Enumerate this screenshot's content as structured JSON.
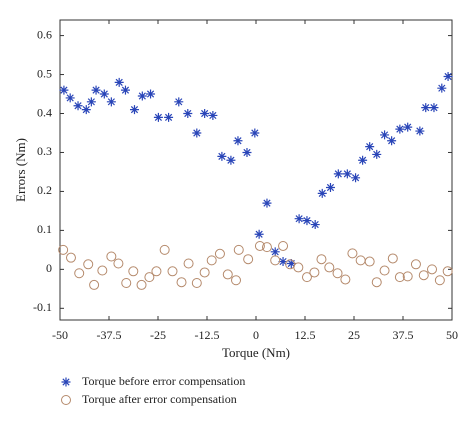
{
  "chart_data": {
    "type": "scatter",
    "x_label": "Torque (Nm)",
    "y_label": "Errors (Nm)",
    "xlim": [
      -50,
      50
    ],
    "xticks": [
      -50,
      -37.5,
      -25,
      -12.5,
      0,
      12.5,
      25,
      37.5,
      50
    ],
    "ylim": [
      -0.13,
      0.64
    ],
    "yticks": [
      -0.1,
      0,
      0.1,
      0.2,
      0.3,
      0.4,
      0.5,
      0.6
    ],
    "series": [
      {
        "name": "Torque before error compensation",
        "color": "#2945b8",
        "marker": "star",
        "x": [
          -49,
          -47.4,
          -45.4,
          -43.3,
          -42,
          -40.8,
          -38.7,
          -36.9,
          -34.9,
          -33.3,
          -31,
          -29,
          -26.9,
          -24.9,
          -22.3,
          -19.7,
          -17.4,
          -15.1,
          -13.1,
          -11,
          -8.7,
          -6.4,
          -4.6,
          -2.3,
          -0.3,
          0.8,
          2.8,
          4.9,
          6.9,
          9,
          11,
          13,
          15.1,
          16.9,
          19,
          21,
          23.3,
          25.4,
          27.2,
          29,
          30.8,
          32.8,
          34.6,
          36.7,
          38.7,
          41.8,
          43.3,
          45.4,
          47.4,
          49
        ],
        "values": [
          0.46,
          0.44,
          0.42,
          0.41,
          0.43,
          0.46,
          0.45,
          0.43,
          0.48,
          0.46,
          0.41,
          0.445,
          0.45,
          0.39,
          0.39,
          0.43,
          0.4,
          0.35,
          0.4,
          0.395,
          0.29,
          0.28,
          0.33,
          0.3,
          0.35,
          0.09,
          0.17,
          0.045,
          0.02,
          0.015,
          0.13,
          0.125,
          0.115,
          0.195,
          0.21,
          0.245,
          0.245,
          0.235,
          0.28,
          0.315,
          0.295,
          0.345,
          0.33,
          0.36,
          0.365,
          0.355,
          0.415,
          0.415,
          0.465,
          0.495
        ]
      },
      {
        "name": "Torque after error compensation",
        "color": "#b58a6c",
        "marker": "circle",
        "x": [
          -49.2,
          -47.2,
          -45.1,
          -42.8,
          -41.3,
          -39.2,
          -36.9,
          -35.1,
          -33.1,
          -31.3,
          -29.2,
          -27.2,
          -25.4,
          -23.3,
          -21.3,
          -19,
          -17.2,
          -15.1,
          -13.1,
          -11.3,
          -9.2,
          -7.2,
          -5.1,
          -4.4,
          -2,
          1,
          2.8,
          4.9,
          6.9,
          8.7,
          10.8,
          13,
          14.9,
          16.7,
          18.7,
          20.8,
          22.8,
          24.6,
          26.7,
          29,
          30.8,
          32.8,
          34.9,
          36.7,
          38.7,
          40.8,
          42.8,
          44.9,
          46.9,
          48.9
        ],
        "values": [
          0.05,
          0.03,
          -0.01,
          0.013,
          -0.04,
          -0.003,
          0.033,
          0.015,
          -0.035,
          -0.005,
          -0.04,
          -0.02,
          -0.005,
          0.05,
          -0.005,
          -0.033,
          0.015,
          -0.035,
          -0.008,
          0.023,
          0.04,
          -0.013,
          -0.028,
          0.05,
          0.026,
          0.06,
          0.057,
          0.023,
          0.06,
          0.013,
          0.005,
          -0.02,
          -0.008,
          0.026,
          0.005,
          -0.01,
          -0.026,
          0.041,
          0.023,
          0.02,
          -0.033,
          -0.003,
          0.028,
          -0.02,
          -0.018,
          0.013,
          -0.015,
          0,
          -0.028,
          -0.005
        ]
      }
    ]
  }
}
